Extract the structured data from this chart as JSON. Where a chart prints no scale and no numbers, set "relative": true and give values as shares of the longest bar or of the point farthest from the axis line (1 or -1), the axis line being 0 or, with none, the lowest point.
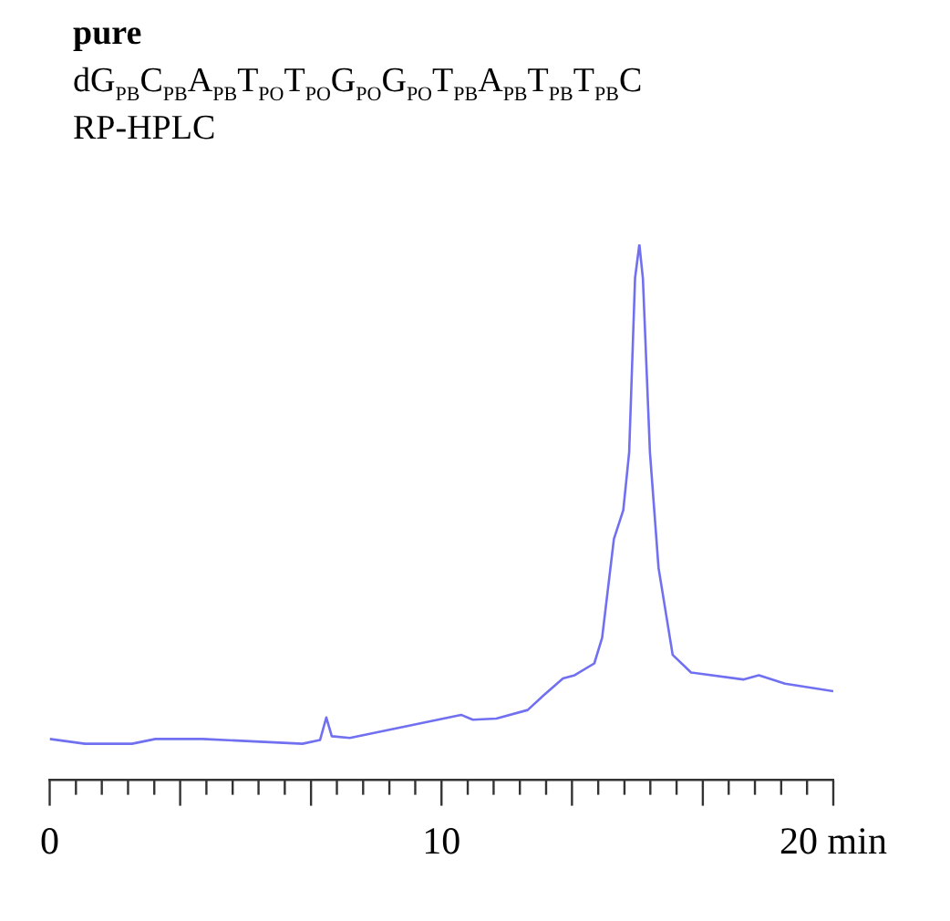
{
  "chart_data": {
    "type": "line",
    "title": "pure",
    "subtitle": "dG$_{PB}$C$_{PB}$A$_{PB}$T$_{PO}$T$_{PO}$G$_{PO}$G$_{PO}$T$_{PB}$A$_{PB}$T$_{PB}$T$_{PB}$C",
    "annotations": [
      "RP-HPLC"
    ],
    "relative": true,
    "xlim": [
      0,
      20
    ],
    "xticks": [
      0,
      {
        "value": 0.67,
        "label": null
      },
      {
        "value": 1.33,
        "label": null
      },
      {
        "value": 2,
        "label": null
      },
      {
        "value": 2.67,
        "label": null
      },
      {
        "value": 3.33,
        "label": null
      },
      {
        "value": 4,
        "label": null
      },
      {
        "value": 4.67,
        "label": null
      },
      {
        "value": 5.33,
        "label": null
      },
      {
        "value": 6,
        "label": null
      },
      {
        "value": 6.67,
        "label": null
      },
      {
        "value": 7.33,
        "label": null
      },
      {
        "value": 8,
        "label": null
      },
      {
        "value": 8.67,
        "label": null
      },
      {
        "value": 9.33,
        "label": null
      },
      10,
      {
        "value": 10.67,
        "label": null
      },
      {
        "value": 11.33,
        "label": null
      },
      {
        "value": 12,
        "label": null
      },
      {
        "value": 12.67,
        "label": null
      },
      {
        "value": 13.33,
        "label": null
      },
      {
        "value": 14,
        "label": null
      },
      {
        "value": 14.67,
        "label": null
      },
      {
        "value": 15.33,
        "label": null
      },
      {
        "value": 16,
        "label": null
      },
      {
        "value": 16.67,
        "label": null
      },
      {
        "value": 17.33,
        "label": null
      },
      {
        "value": 18,
        "label": null
      },
      {
        "value": 18.67,
        "label": null
      },
      {
        "value": 19.33,
        "label": null
      },
      {
        "value": 20,
        "label": "20 min"
      }
    ],
    "grid": false,
    "legend": false,
    "marker": "none",
    "line_style": "solid",
    "series": [
      {
        "color": "#7070f0",
        "x": [
          0,
          0.9,
          2.1,
          2.7,
          3.9,
          6.45,
          6.9,
          7.06,
          7.2,
          7.66,
          10.5,
          10.8,
          11.4,
          12.2,
          12.6,
          13.1,
          13.4,
          13.9,
          14.1,
          14.4,
          14.64,
          14.79,
          14.94,
          15.05,
          15.14,
          15.32,
          15.54,
          15.9,
          16.37,
          17.7,
          18.1,
          18.77,
          20
        ],
        "values": [
          0.077,
          0.068,
          0.068,
          0.077,
          0.077,
          0.068,
          0.075,
          0.117,
          0.082,
          0.079,
          0.122,
          0.113,
          0.115,
          0.131,
          0.158,
          0.19,
          0.196,
          0.218,
          0.266,
          0.45,
          0.504,
          0.612,
          0.937,
          1,
          0.937,
          0.612,
          0.396,
          0.234,
          0.201,
          0.188,
          0.196,
          0.18,
          0.166
        ]
      }
    ]
  }
}
